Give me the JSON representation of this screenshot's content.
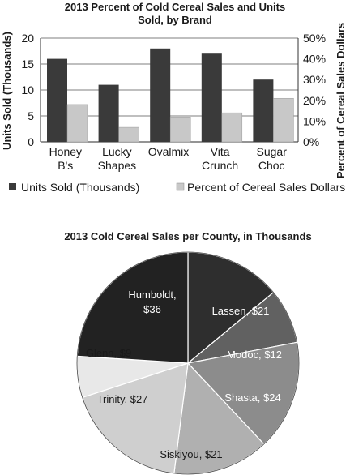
{
  "chart_data": [
    {
      "type": "bar",
      "title_lines": [
        "2013 Percent of Cold Cereal Sales and Units",
        "Sold, by Brand"
      ],
      "categories": [
        [
          "Honey",
          "B's"
        ],
        [
          "Lucky",
          "Shapes"
        ],
        [
          "Ovalmix"
        ],
        [
          "Vita",
          "Crunch"
        ],
        [
          "Sugar",
          "Choc"
        ]
      ],
      "series": [
        {
          "name": "Units Sold (Thousands)",
          "axis": "left",
          "values": [
            16,
            11,
            18,
            17,
            12
          ],
          "color": "#3a3a3a"
        },
        {
          "name": "Percent of Cereal Sales Dollars",
          "axis": "right",
          "values": [
            18,
            7,
            12,
            14,
            21
          ],
          "color": "#c8c8c8"
        }
      ],
      "ylabel": "Units Sold (Thousands)",
      "ylabel_right": "Percent of Cereal Sales Dollars",
      "ylim": [
        0,
        20
      ],
      "yticks": [
        "0",
        "5",
        "10",
        "15",
        "20"
      ],
      "ylim_right": [
        0,
        50
      ],
      "yticks_right": [
        "0%",
        "10%",
        "20%",
        "30%",
        "40%",
        "50%"
      ],
      "grid": true,
      "legend": "bottom"
    },
    {
      "type": "pie",
      "title": "2013 Cold Cereal Sales per County, in Thousands",
      "slices": [
        {
          "label": "Lassen, $21",
          "value": 21,
          "color": "#2e2e2e",
          "text_color": "#ffffff"
        },
        {
          "label": "Modoc, $12",
          "value": 12,
          "color": "#616161",
          "text_color": "#ffffff"
        },
        {
          "label": "Shasta, $24",
          "value": 24,
          "color": "#8c8c8c",
          "text_color": "#ffffff"
        },
        {
          "label": "Siskiyou, $21",
          "value": 21,
          "color": "#b0b0b0",
          "text_color": "#1a1a1a"
        },
        {
          "label": "Trinity, $27",
          "value": 27,
          "color": "#cfcfcf",
          "text_color": "#1a1a1a"
        },
        {
          "label": "Glenn, $9",
          "value": 9,
          "color": "#e8e8e8",
          "text_color": "#1a1a1a"
        },
        {
          "label": "Humboldt, $36",
          "value": 36,
          "color": "#222222",
          "text_color": "#ffffff"
        }
      ]
    }
  ]
}
